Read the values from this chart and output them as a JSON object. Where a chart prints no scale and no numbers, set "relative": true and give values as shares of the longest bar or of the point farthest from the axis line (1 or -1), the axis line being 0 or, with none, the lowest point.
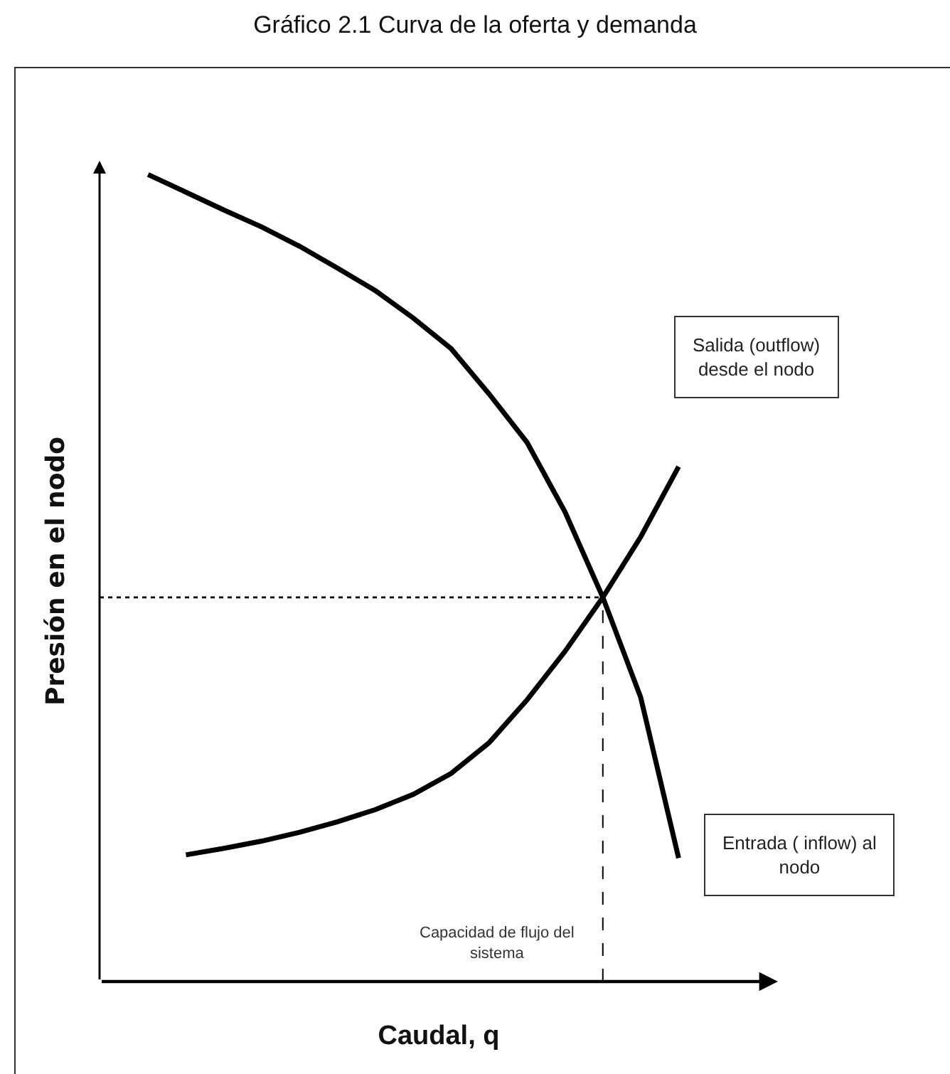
{
  "chart_data": {
    "type": "line",
    "title": "Gráfico 2.1 Curva de la oferta y demanda",
    "xlabel": "Caudal, q",
    "ylabel": "Presión en el nodo",
    "relative": true,
    "legend": false,
    "marker": "none",
    "line_style": "solid",
    "categories": [
      null,
      null,
      null,
      null,
      null,
      null,
      null,
      null,
      null,
      null,
      null,
      null,
      null,
      null,
      null
    ],
    "series": [
      {
        "name": "Entrada ( inflow) al\nnodo",
        "color": "#000000",
        "values": [
          1.0,
          0.978,
          0.956,
          0.935,
          0.911,
          0.884,
          0.856,
          0.822,
          0.784,
          0.728,
          0.668,
          0.582,
          0.476,
          0.352,
          0.153
        ]
      },
      {
        "name": "Salida (outflow)\ndesde el nodo",
        "color": "#000000",
        "values": [
          null,
          0.157,
          0.165,
          0.174,
          0.185,
          0.198,
          0.213,
          0.232,
          0.258,
          0.296,
          0.349,
          0.409,
          0.476,
          0.551,
          0.638
        ]
      }
    ],
    "ref_lines": [
      {
        "axis": "y",
        "value": 0.476,
        "line_style": "dotted",
        "color": "#000000"
      }
    ],
    "annotations": [
      "Capacidad de flujo del\nsistema"
    ]
  }
}
